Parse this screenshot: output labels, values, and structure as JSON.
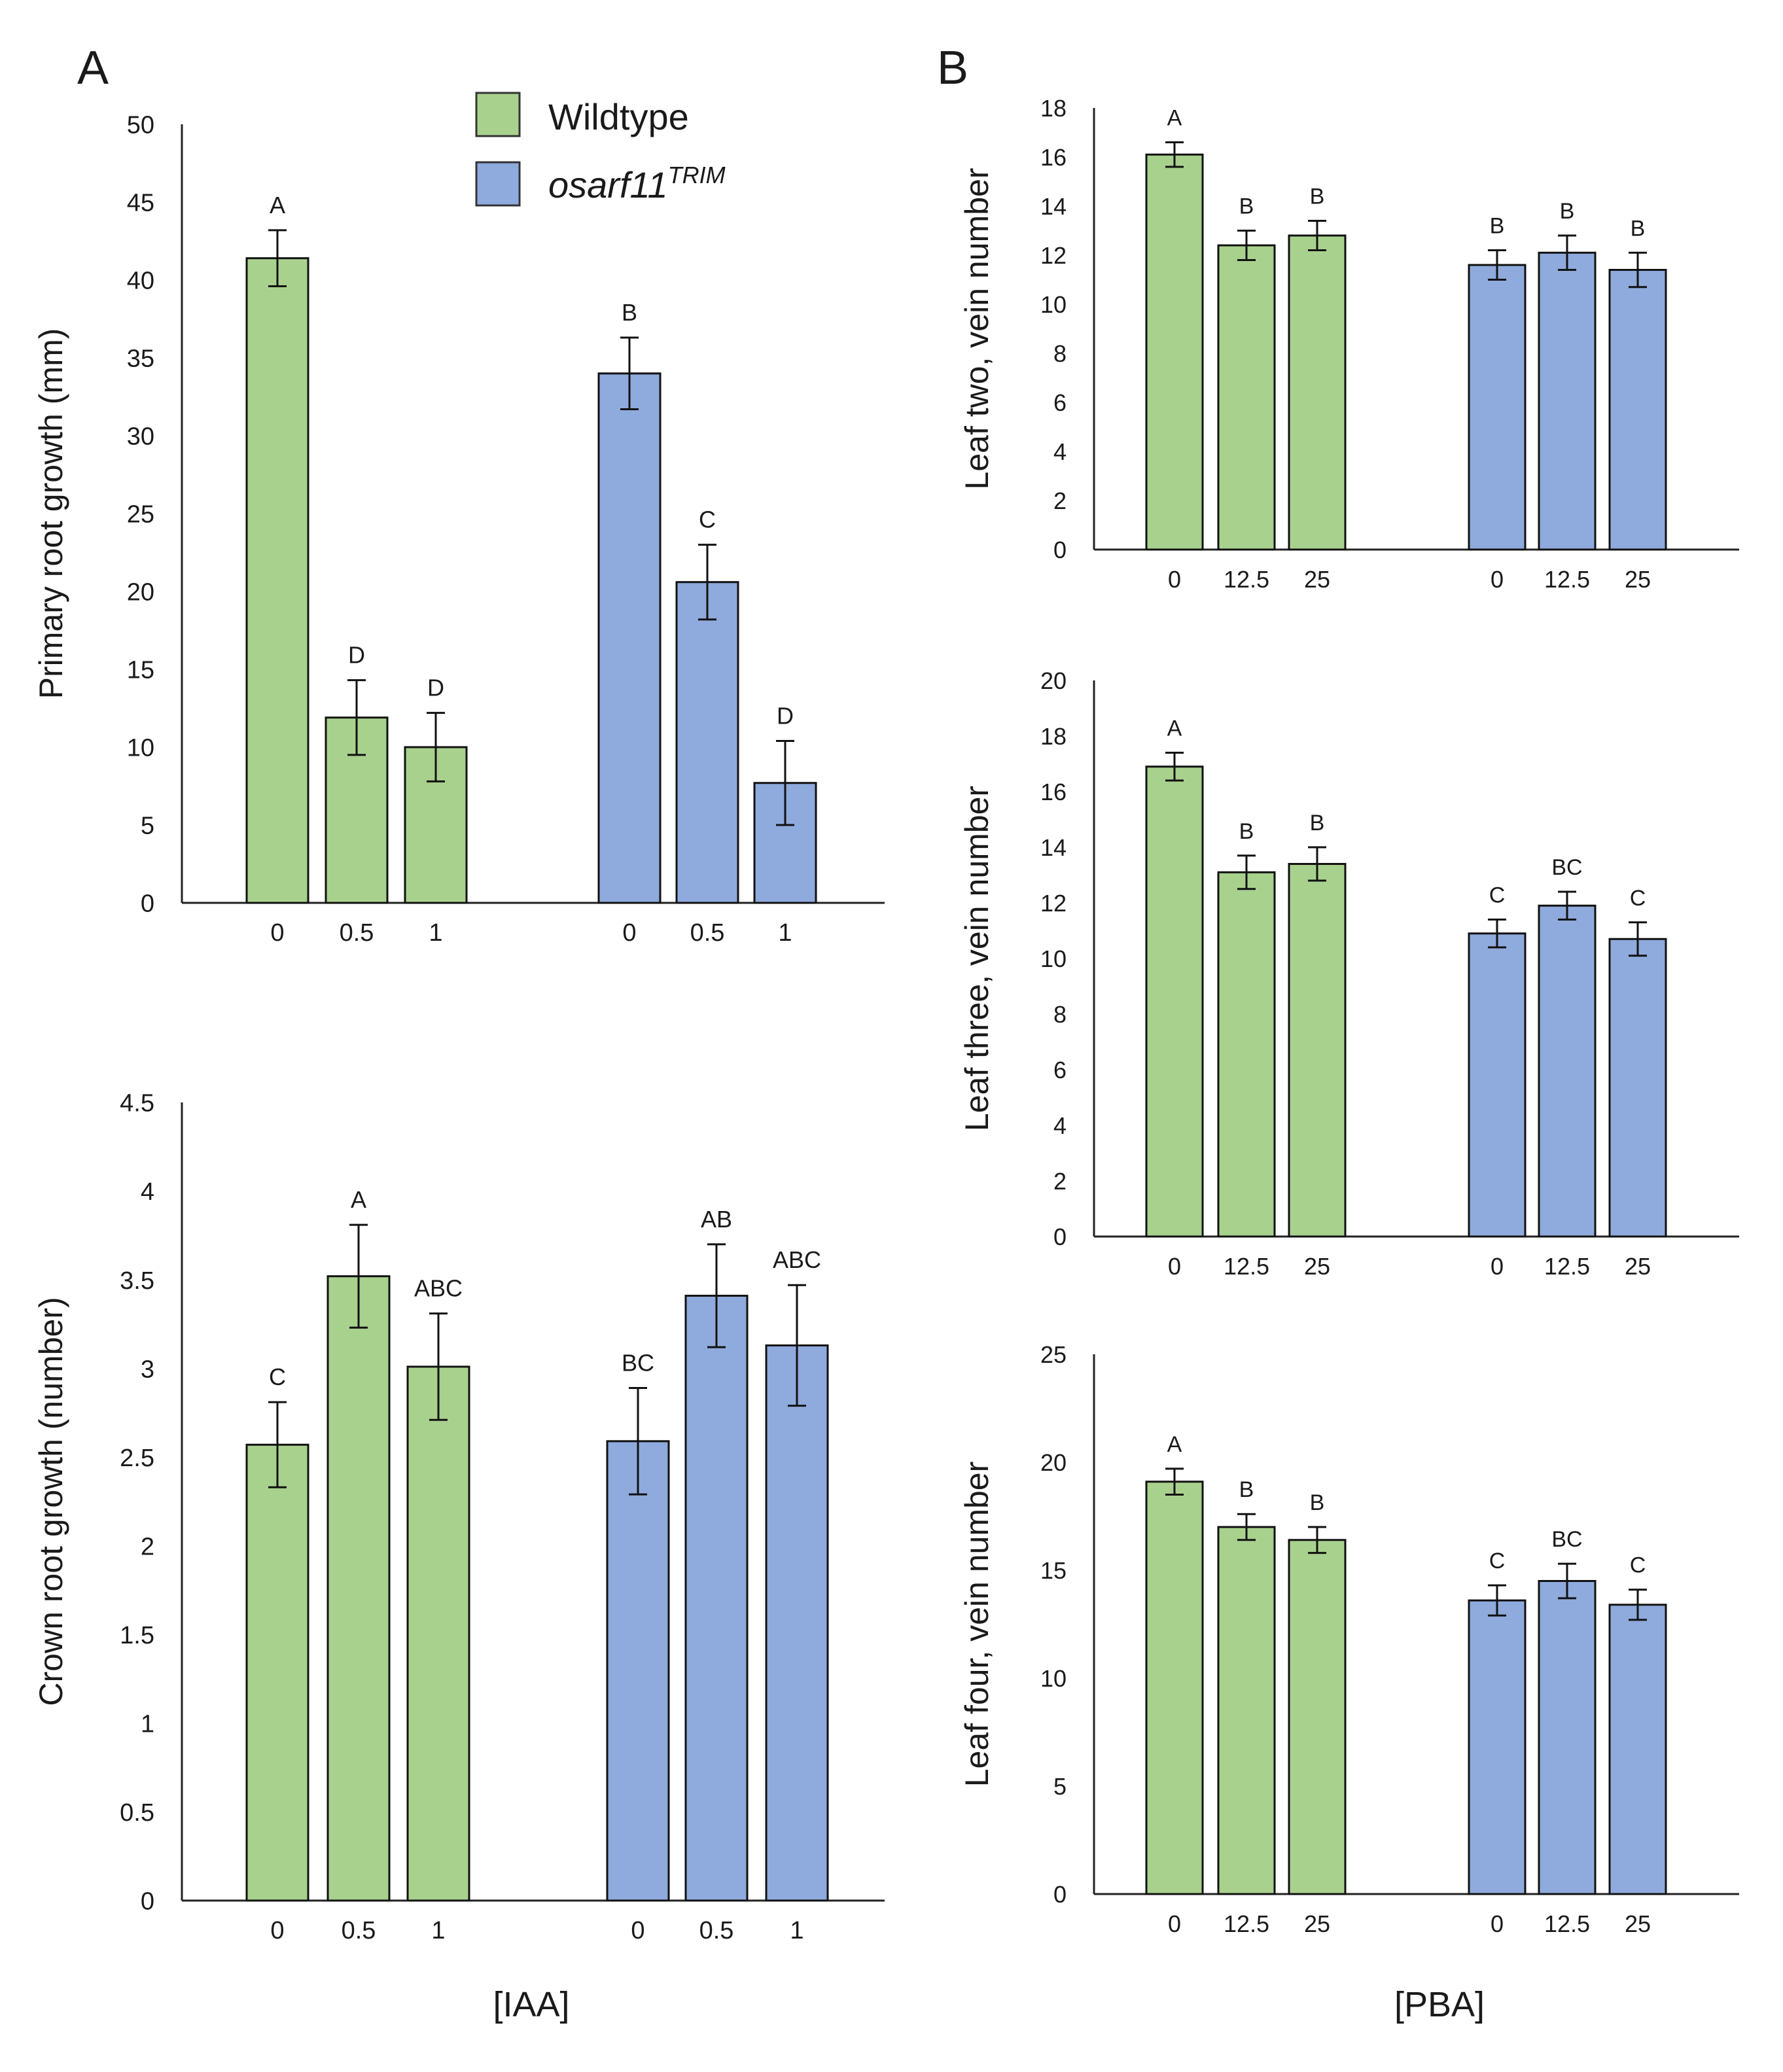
{
  "panel_labels": {
    "a": "A",
    "b": "B"
  },
  "legend": {
    "wildtype": "Wildtype",
    "mutant": "osarf11",
    "mutant_sup": "TRIM",
    "wildtype_color": "#a9d18e",
    "mutant_color": "#8faadc"
  },
  "shared_xlabels": {
    "iaa": "[IAA]",
    "pba": "[PBA]"
  },
  "chart_data": [
    {
      "id": "primary-root",
      "type": "bar",
      "ylabel": "Primary root growth (mm)",
      "xlabel": "[IAA]",
      "ylim": [
        0,
        50
      ],
      "yticks": [
        0,
        5,
        10,
        15,
        20,
        25,
        30,
        35,
        40,
        45,
        50
      ],
      "series": [
        {
          "name": "Wildtype",
          "color": "#a9d18e",
          "categories": [
            "0",
            "0.5",
            "1"
          ],
          "values": [
            41.4,
            11.9,
            10.0
          ],
          "errors": [
            1.8,
            2.4,
            2.2
          ],
          "letters": [
            "A",
            "D",
            "D"
          ]
        },
        {
          "name": "osarf11TRIM",
          "color": "#8faadc",
          "categories": [
            "0",
            "0.5",
            "1"
          ],
          "values": [
            34.0,
            20.6,
            7.7
          ],
          "errors": [
            2.3,
            2.4,
            2.7
          ],
          "letters": [
            "B",
            "C",
            "D"
          ]
        }
      ]
    },
    {
      "id": "crown-root",
      "type": "bar",
      "ylabel": "Crown root growth (number)",
      "xlabel": "[IAA]",
      "ylim": [
        0,
        4.5
      ],
      "yticks": [
        0,
        0.5,
        1,
        1.5,
        2,
        2.5,
        3,
        3.5,
        4,
        4.5
      ],
      "series": [
        {
          "name": "Wildtype",
          "color": "#a9d18e",
          "categories": [
            "0",
            "0.5",
            "1"
          ],
          "values": [
            2.57,
            3.52,
            3.01
          ],
          "errors": [
            0.24,
            0.29,
            0.3
          ],
          "letters": [
            "C",
            "A",
            "ABC"
          ]
        },
        {
          "name": "osarf11TRIM",
          "color": "#8faadc",
          "categories": [
            "0",
            "0.5",
            "1"
          ],
          "values": [
            2.59,
            3.41,
            3.13
          ],
          "errors": [
            0.3,
            0.29,
            0.34
          ],
          "letters": [
            "BC",
            "AB",
            "ABC"
          ]
        }
      ]
    },
    {
      "id": "leaf-two",
      "type": "bar",
      "ylabel": "Leaf two, vein number",
      "xlabel": "[PBA]",
      "ylim": [
        0,
        18
      ],
      "yticks": [
        0,
        2,
        4,
        6,
        8,
        10,
        12,
        14,
        16,
        18
      ],
      "series": [
        {
          "name": "Wildtype",
          "color": "#a9d18e",
          "categories": [
            "0",
            "12.5",
            "25"
          ],
          "values": [
            16.1,
            12.4,
            12.8
          ],
          "errors": [
            0.5,
            0.6,
            0.6
          ],
          "letters": [
            "A",
            "B",
            "B"
          ]
        },
        {
          "name": "osarf11TRIM",
          "color": "#8faadc",
          "categories": [
            "0",
            "12.5",
            "25"
          ],
          "values": [
            11.6,
            12.1,
            11.4
          ],
          "errors": [
            0.6,
            0.7,
            0.7
          ],
          "letters": [
            "B",
            "B",
            "B"
          ]
        }
      ]
    },
    {
      "id": "leaf-three",
      "type": "bar",
      "ylabel": "Leaf three, vein number",
      "xlabel": "[PBA]",
      "ylim": [
        0,
        20
      ],
      "yticks": [
        0,
        2,
        4,
        6,
        8,
        10,
        12,
        14,
        16,
        18,
        20
      ],
      "series": [
        {
          "name": "Wildtype",
          "color": "#a9d18e",
          "categories": [
            "0",
            "12.5",
            "25"
          ],
          "values": [
            16.9,
            13.1,
            13.4
          ],
          "errors": [
            0.5,
            0.6,
            0.6
          ],
          "letters": [
            "A",
            "B",
            "B"
          ]
        },
        {
          "name": "osarf11TRIM",
          "color": "#8faadc",
          "categories": [
            "0",
            "12.5",
            "25"
          ],
          "values": [
            10.9,
            11.9,
            10.7
          ],
          "errors": [
            0.5,
            0.5,
            0.6
          ],
          "letters": [
            "C",
            "BC",
            "C"
          ]
        }
      ]
    },
    {
      "id": "leaf-four",
      "type": "bar",
      "ylabel": "Leaf four, vein number",
      "xlabel": "[PBA]",
      "ylim": [
        0,
        25
      ],
      "yticks": [
        0,
        5,
        10,
        15,
        20,
        25
      ],
      "series": [
        {
          "name": "Wildtype",
          "color": "#a9d18e",
          "categories": [
            "0",
            "12.5",
            "25"
          ],
          "values": [
            19.1,
            17.0,
            16.4
          ],
          "errors": [
            0.6,
            0.6,
            0.6
          ],
          "letters": [
            "A",
            "B",
            "B"
          ]
        },
        {
          "name": "osarf11TRIM",
          "color": "#8faadc",
          "categories": [
            "0",
            "12.5",
            "25"
          ],
          "values": [
            13.6,
            14.5,
            13.4
          ],
          "errors": [
            0.7,
            0.8,
            0.7
          ],
          "letters": [
            "C",
            "BC",
            "C"
          ]
        }
      ]
    }
  ]
}
